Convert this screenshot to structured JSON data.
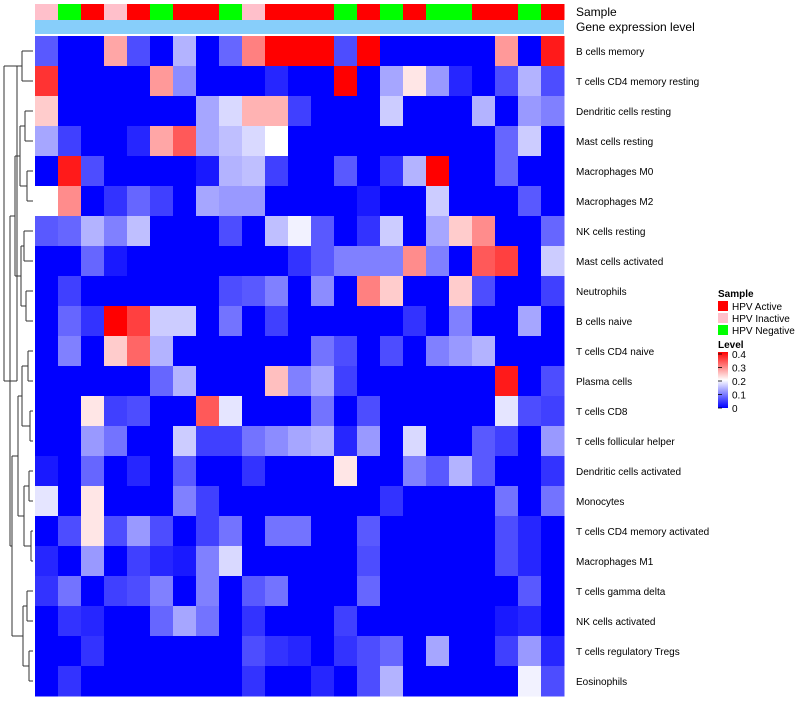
{
  "chart_data": {
    "type": "heatmap",
    "annotation_labels": {
      "sample": "Sample",
      "expression": "Gene expression level"
    },
    "sample_groups": [
      "HPV Inactive",
      "HPV Negative",
      "HPV Active",
      "HPV Inactive",
      "HPV Active",
      "HPV Negative",
      "HPV Active",
      "HPV Active",
      "HPV Negative",
      "HPV Inactive",
      "HPV Active",
      "HPV Active",
      "HPV Active",
      "HPV Negative",
      "HPV Active",
      "HPV Negative",
      "HPV Active",
      "HPV Negative",
      "HPV Negative",
      "HPV Active",
      "HPV Active",
      "HPV Negative",
      "HPV Active"
    ],
    "rows": [
      "B cells memory",
      "T cells CD4 memory resting",
      "Dendritic cells resting",
      "Mast cells resting",
      "Macrophages M0",
      "Macrophages M2",
      "NK cells resting",
      "Mast cells activated",
      "Neutrophils",
      "B cells naive",
      "T cells CD4 naive",
      "Plasma cells",
      "T cells CD8",
      "T cells follicular helper",
      "Dendritic cells activated",
      "Monocytes",
      "T cells CD4 memory activated",
      "Macrophages M1",
      "T cells gamma delta",
      "NK cells activated",
      "T cells regulatory  Tregs",
      "Eosinophils"
    ],
    "values": [
      [
        0.07,
        0.0,
        0.0,
        0.27,
        0.06,
        0.0,
        0.14,
        0.0,
        0.08,
        0.3,
        0.4,
        0.4,
        0.4,
        0.06,
        0.4,
        0.0,
        0.0,
        0.0,
        0.0,
        0.0,
        0.28,
        0.0,
        0.38
      ],
      [
        0.36,
        0.0,
        0.0,
        0.0,
        0.0,
        0.28,
        0.11,
        0.0,
        0.0,
        0.0,
        0.03,
        0.0,
        0.0,
        0.4,
        0.0,
        0.13,
        0.22,
        0.12,
        0.03,
        0.0,
        0.06,
        0.14,
        0.06
      ],
      [
        0.24,
        0.0,
        0.0,
        0.0,
        0.0,
        0.0,
        0.0,
        0.13,
        0.17,
        0.26,
        0.26,
        0.05,
        0.0,
        0.0,
        0.0,
        0.16,
        0.0,
        0.0,
        0.0,
        0.14,
        0.0,
        0.12,
        0.1
      ],
      [
        0.13,
        0.05,
        0.0,
        0.0,
        0.03,
        0.27,
        0.33,
        0.13,
        0.15,
        0.17,
        0.2,
        0.0,
        0.0,
        0.0,
        0.0,
        0.0,
        0.0,
        0.0,
        0.0,
        0.0,
        0.08,
        0.16,
        0.0
      ],
      [
        0.0,
        0.38,
        0.06,
        0.0,
        0.0,
        0.0,
        0.0,
        0.02,
        0.14,
        0.15,
        0.05,
        0.0,
        0.0,
        0.07,
        0.0,
        0.04,
        0.14,
        0.4,
        0.0,
        0.0,
        0.08,
        0.0,
        0.0
      ],
      [
        0.2,
        0.29,
        0.0,
        0.04,
        0.08,
        0.05,
        0.0,
        0.13,
        0.12,
        0.12,
        0.0,
        0.0,
        0.0,
        0.0,
        0.02,
        0.0,
        0.0,
        0.16,
        0.0,
        0.0,
        0.0,
        0.07,
        0.0
      ],
      [
        0.07,
        0.08,
        0.14,
        0.1,
        0.15,
        0.0,
        0.0,
        0.0,
        0.06,
        0.0,
        0.15,
        0.19,
        0.07,
        0.0,
        0.04,
        0.16,
        0.0,
        0.13,
        0.24,
        0.29,
        0.0,
        0.0,
        0.08
      ],
      [
        0.0,
        0.0,
        0.08,
        0.02,
        0.0,
        0.0,
        0.0,
        0.0,
        0.0,
        0.0,
        0.0,
        0.04,
        0.07,
        0.1,
        0.1,
        0.1,
        0.29,
        0.1,
        0.0,
        0.33,
        0.35,
        0.0,
        0.16
      ],
      [
        0.0,
        0.05,
        0.0,
        0.0,
        0.0,
        0.0,
        0.0,
        0.0,
        0.06,
        0.07,
        0.1,
        0.0,
        0.11,
        0.0,
        0.3,
        0.24,
        0.0,
        0.0,
        0.24,
        0.06,
        0.0,
        0.0,
        0.05
      ],
      [
        0.0,
        0.08,
        0.04,
        0.4,
        0.35,
        0.16,
        0.16,
        0.0,
        0.09,
        0.0,
        0.05,
        0.0,
        0.0,
        0.0,
        0.0,
        0.0,
        0.04,
        0.0,
        0.1,
        0.0,
        0.0,
        0.13,
        0.0
      ],
      [
        0.0,
        0.1,
        0.0,
        0.24,
        0.32,
        0.14,
        0.0,
        0.0,
        0.0,
        0.0,
        0.0,
        0.0,
        0.09,
        0.06,
        0.0,
        0.06,
        0.0,
        0.1,
        0.12,
        0.14,
        0.0,
        0.0,
        0.0
      ],
      [
        0.0,
        0.0,
        0.0,
        0.0,
        0.0,
        0.08,
        0.14,
        0.0,
        0.0,
        0.0,
        0.25,
        0.1,
        0.13,
        0.05,
        0.0,
        0.0,
        0.0,
        0.0,
        0.0,
        0.0,
        0.38,
        0.0,
        0.06
      ],
      [
        0.0,
        0.0,
        0.22,
        0.05,
        0.06,
        0.0,
        0.0,
        0.33,
        0.18,
        0.0,
        0.0,
        0.0,
        0.09,
        0.0,
        0.06,
        0.0,
        0.0,
        0.0,
        0.0,
        0.0,
        0.18,
        0.06,
        0.05
      ],
      [
        0.0,
        0.0,
        0.12,
        0.09,
        0.0,
        0.0,
        0.16,
        0.05,
        0.05,
        0.09,
        0.11,
        0.13,
        0.14,
        0.03,
        0.12,
        0.0,
        0.17,
        0.0,
        0.0,
        0.07,
        0.05,
        0.0,
        0.12
      ],
      [
        0.02,
        0.0,
        0.08,
        0.0,
        0.03,
        0.0,
        0.07,
        0.0,
        0.0,
        0.04,
        0.0,
        0.0,
        0.0,
        0.22,
        0.0,
        0.0,
        0.1,
        0.07,
        0.14,
        0.07,
        0.0,
        0.0,
        0.04
      ],
      [
        0.18,
        0.0,
        0.22,
        0.0,
        0.0,
        0.0,
        0.1,
        0.05,
        0.0,
        0.0,
        0.0,
        0.0,
        0.0,
        0.0,
        0.0,
        0.04,
        0.0,
        0.0,
        0.0,
        0.0,
        0.09,
        0.0,
        0.09
      ],
      [
        0.0,
        0.06,
        0.22,
        0.06,
        0.12,
        0.06,
        0.0,
        0.05,
        0.09,
        0.0,
        0.09,
        0.09,
        0.0,
        0.0,
        0.07,
        0.0,
        0.0,
        0.0,
        0.0,
        0.0,
        0.06,
        0.03,
        0.0
      ],
      [
        0.03,
        0.0,
        0.12,
        0.0,
        0.05,
        0.03,
        0.02,
        0.1,
        0.17,
        0.0,
        0.0,
        0.0,
        0.0,
        0.0,
        0.06,
        0.0,
        0.0,
        0.0,
        0.0,
        0.0,
        0.06,
        0.03,
        0.0
      ],
      [
        0.04,
        0.09,
        0.0,
        0.05,
        0.06,
        0.1,
        0.0,
        0.1,
        0.0,
        0.07,
        0.09,
        0.0,
        0.0,
        0.0,
        0.08,
        0.0,
        0.0,
        0.0,
        0.0,
        0.0,
        0.0,
        0.07,
        0.0
      ],
      [
        0.0,
        0.04,
        0.03,
        0.0,
        0.0,
        0.08,
        0.13,
        0.09,
        0.0,
        0.04,
        0.0,
        0.0,
        0.0,
        0.05,
        0.0,
        0.0,
        0.0,
        0.0,
        0.0,
        0.0,
        0.02,
        0.03,
        0.0
      ],
      [
        0.0,
        0.0,
        0.04,
        0.0,
        0.0,
        0.0,
        0.0,
        0.0,
        0.0,
        0.06,
        0.04,
        0.03,
        0.0,
        0.04,
        0.06,
        0.08,
        0.0,
        0.13,
        0.0,
        0.0,
        0.05,
        0.12,
        0.03
      ],
      [
        0.0,
        0.04,
        0.0,
        0.0,
        0.0,
        0.0,
        0.0,
        0.0,
        0.0,
        0.04,
        0.0,
        0.0,
        0.03,
        0.0,
        0.06,
        0.14,
        0.0,
        0.0,
        0.0,
        0.0,
        0.0,
        0.19,
        0.06
      ]
    ],
    "legend": {
      "sample_title": "Sample",
      "sample_entries": [
        {
          "label": "HPV Active",
          "color": "#ff0000"
        },
        {
          "label": "HPV Inactive",
          "color": "#ffc0cb"
        },
        {
          "label": "HPV Negative",
          "color": "#00ff00"
        }
      ],
      "level_title": "Level",
      "level_ticks": [
        "0.4",
        "0.3",
        "0.2",
        "0.1",
        "0"
      ],
      "level_range": [
        0,
        0.4
      ]
    },
    "colors": {
      "low": "#0000ff",
      "mid": "#ffffff",
      "high": "#ff0000",
      "expression_bar": "#87cefa"
    }
  }
}
